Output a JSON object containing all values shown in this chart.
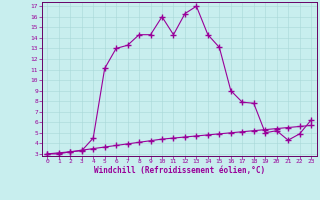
{
  "xlabel": "Windchill (Refroidissement éolien,°C)",
  "bg_color": "#c8eeee",
  "line_color": "#990099",
  "grid_color": "#a8d8d8",
  "spine_color": "#660066",
  "xlim": [
    -0.5,
    23.5
  ],
  "ylim": [
    2.8,
    17.4
  ],
  "xticks": [
    0,
    1,
    2,
    3,
    4,
    5,
    6,
    7,
    8,
    9,
    10,
    11,
    12,
    13,
    14,
    15,
    16,
    17,
    18,
    19,
    20,
    21,
    22,
    23
  ],
  "yticks": [
    3,
    4,
    5,
    6,
    7,
    8,
    9,
    10,
    11,
    12,
    13,
    14,
    15,
    16,
    17
  ],
  "line1_x": [
    0,
    1,
    2,
    3,
    4,
    5,
    6,
    7,
    8,
    9,
    10,
    11,
    12,
    13,
    14,
    15,
    16,
    17,
    18,
    19,
    20,
    21,
    22,
    23
  ],
  "line1_y": [
    3.0,
    3.0,
    3.2,
    3.3,
    4.5,
    11.1,
    13.0,
    13.3,
    14.3,
    14.3,
    16.0,
    14.3,
    16.3,
    17.0,
    14.3,
    13.1,
    9.0,
    7.9,
    7.8,
    5.0,
    5.2,
    4.3,
    4.9,
    6.2
  ],
  "line2_x": [
    0,
    1,
    2,
    3,
    4,
    5,
    6,
    7,
    8,
    9,
    10,
    11,
    12,
    13,
    14,
    15,
    16,
    17,
    18,
    19,
    20,
    21,
    22,
    23
  ],
  "line2_y": [
    3.0,
    3.1,
    3.2,
    3.35,
    3.5,
    3.65,
    3.8,
    3.95,
    4.1,
    4.25,
    4.4,
    4.5,
    4.6,
    4.7,
    4.8,
    4.9,
    5.0,
    5.1,
    5.2,
    5.3,
    5.4,
    5.5,
    5.6,
    5.7
  ],
  "marker": "+",
  "markersize": 4.0,
  "linewidth": 0.8,
  "tick_fontsize": 4.5,
  "xlabel_fontsize": 5.5,
  "marker_linewidth": 1.0
}
